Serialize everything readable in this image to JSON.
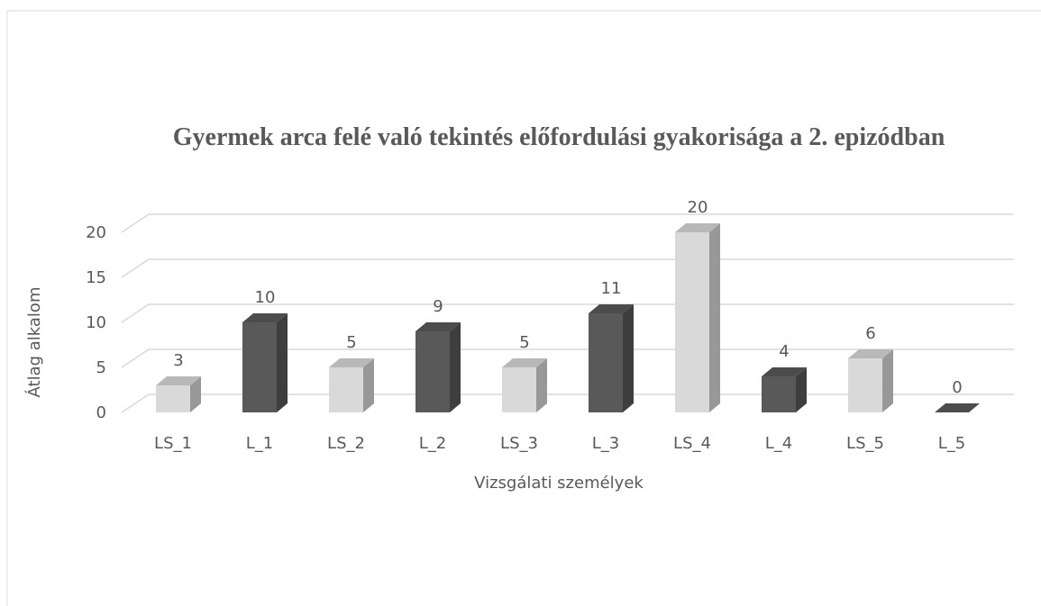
{
  "chart_data": {
    "type": "bar3d",
    "title": "Gyermek arca felé való tekintés előfordulási gyakorisága a 2. epizódban",
    "xlabel": "Vizsgálati személyek",
    "ylabel": "Átlag alkalom",
    "categories": [
      "LS_1",
      "L_1",
      "LS_2",
      "L_2",
      "LS_3",
      "L_3",
      "LS_4",
      "L_4",
      "LS_5",
      "L_5"
    ],
    "values": [
      3,
      10,
      5,
      9,
      5,
      11,
      20,
      4,
      6,
      0
    ],
    "colors": [
      "#d9d9d9",
      "#595959",
      "#d9d9d9",
      "#595959",
      "#d9d9d9",
      "#595959",
      "#d9d9d9",
      "#595959",
      "#d9d9d9",
      "#595959"
    ],
    "ylim": [
      0,
      20
    ],
    "yticks": [
      0,
      5,
      10,
      15,
      20
    ],
    "grid": true
  }
}
